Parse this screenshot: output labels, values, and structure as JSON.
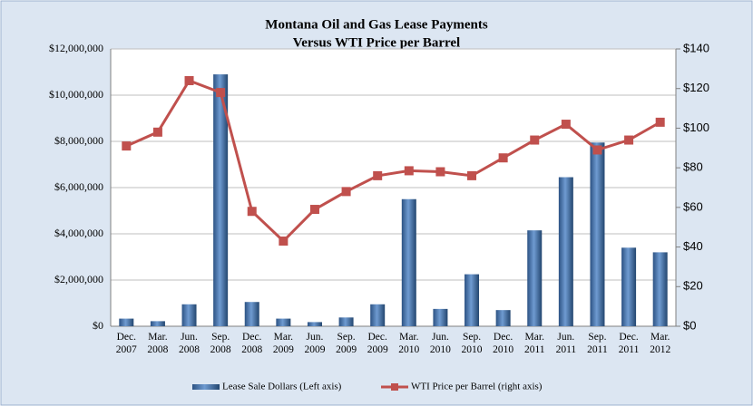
{
  "chart_data": {
    "type": "combo",
    "title": "Montana Oil and Gas Lease Payments",
    "subtitle": "Versus WTI Price per Barrel",
    "categories": [
      "Dec. 2007",
      "Mar. 2008",
      "Jun. 2008",
      "Sep. 2008",
      "Dec. 2008",
      "Mar. 2009",
      "Jun. 2009",
      "Sep. 2009",
      "Dec. 2009",
      "Mar. 2010",
      "Jun. 2010",
      "Sep. 2010",
      "Dec. 2010",
      "Mar. 2011",
      "Jun. 2011",
      "Sep. 2011",
      "Dec. 2011",
      "Mar. 2012"
    ],
    "series": [
      {
        "name": "Lease Sale Dollars (Left axis)",
        "type": "bar",
        "color": "#4f81bd",
        "values": [
          330000,
          220000,
          950000,
          10900000,
          1050000,
          330000,
          180000,
          380000,
          950000,
          5500000,
          750000,
          2250000,
          700000,
          4150000,
          6450000,
          7950000,
          3400000,
          3200000
        ]
      },
      {
        "name": "WTI Price per Barrel (right axis)",
        "type": "line",
        "axis": "y2",
        "color": "#c0504d",
        "values": [
          91,
          98,
          124,
          118,
          58,
          43,
          59,
          68,
          76,
          78.5,
          78,
          76,
          85,
          94,
          102,
          89,
          94,
          103
        ]
      }
    ],
    "ylim": [
      0,
      12000000
    ],
    "yticks": [
      {
        "value": 0,
        "label": "$0"
      },
      {
        "value": 2000000,
        "label": "$2,000,000"
      },
      {
        "value": 4000000,
        "label": "$4,000,000"
      },
      {
        "value": 6000000,
        "label": "$6,000,000"
      },
      {
        "value": 8000000,
        "label": "$8,000,000"
      },
      {
        "value": 10000000,
        "label": "$10,000,000"
      },
      {
        "value": 12000000,
        "label": "$12,000,000"
      }
    ],
    "y2lim": [
      0,
      140
    ],
    "y2ticks": [
      {
        "value": 0,
        "label": "$0"
      },
      {
        "value": 20,
        "label": "$20"
      },
      {
        "value": 40,
        "label": "$40"
      },
      {
        "value": 60,
        "label": "$60"
      },
      {
        "value": 80,
        "label": "$80"
      },
      {
        "value": 100,
        "label": "$100"
      },
      {
        "value": 120,
        "label": "$120"
      },
      {
        "value": 140,
        "label": "$140"
      }
    ],
    "grid": true,
    "legend": "bottom"
  }
}
